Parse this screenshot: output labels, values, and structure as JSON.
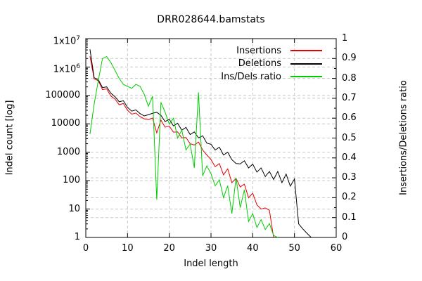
{
  "title": "DRR028644.bamstats",
  "chart_data": {
    "type": "line",
    "title": "DRR028644.bamstats",
    "xlabel": "Indel length",
    "ylabel_left": "Indel count [log]",
    "ylabel_right": "Insertions/Deletions ratio",
    "x_range": [
      0,
      60
    ],
    "y_left": {
      "scale": "log",
      "range": [
        1,
        10000000
      ]
    },
    "y_right": {
      "scale": "linear",
      "range": [
        0,
        1
      ]
    },
    "grid": {
      "on": true,
      "color": "#c8c8c8",
      "dashed": true
    },
    "legend_position": "top-right-inside",
    "x_ticks": [
      0,
      10,
      20,
      30,
      40,
      50,
      60
    ],
    "y_left_tick_labels": [
      {
        "text": "1x10",
        "sup": "7",
        "value": 10000000
      },
      {
        "text": "1x10",
        "sup": "6",
        "value": 1000000
      },
      {
        "text": "100000",
        "value": 100000
      },
      {
        "text": "10000",
        "value": 10000
      },
      {
        "text": "1000",
        "value": 1000
      },
      {
        "text": "100",
        "value": 100
      },
      {
        "text": "10",
        "value": 10
      },
      {
        "text": "1",
        "value": 1
      }
    ],
    "y_right_tick_labels": [
      {
        "text": "1",
        "value": 1
      },
      {
        "text": "0.9",
        "value": 0.9
      },
      {
        "text": "0.8",
        "value": 0.8
      },
      {
        "text": "0.7",
        "value": 0.7
      },
      {
        "text": "0.6",
        "value": 0.6
      },
      {
        "text": "0.5",
        "value": 0.5
      },
      {
        "text": "0.4",
        "value": 0.4
      },
      {
        "text": "0.3",
        "value": 0.3
      },
      {
        "text": "0.2",
        "value": 0.2
      },
      {
        "text": "0.1",
        "value": 0.1
      },
      {
        "text": "0",
        "value": 0
      }
    ],
    "series": [
      {
        "name": "Insertions",
        "color": "#e60000",
        "axis": "left",
        "x_start": 1,
        "y": [
          2400000,
          380000,
          330000,
          160000,
          170000,
          95000,
          75000,
          47000,
          52000,
          30000,
          22000,
          24000,
          18000,
          15000,
          14000,
          16000,
          4800,
          13500,
          7600,
          8300,
          5100,
          5200,
          3200,
          3300,
          2000,
          1800,
          2300,
          1200,
          800,
          550,
          310,
          400,
          160,
          260,
          85,
          120,
          60,
          75,
          25,
          36,
          14,
          10,
          11,
          9,
          1
        ]
      },
      {
        "name": "Deletions",
        "color": "#000000",
        "axis": "left",
        "x_start": 1,
        "y": [
          4200000,
          420000,
          360000,
          190000,
          200000,
          120000,
          90000,
          60000,
          65000,
          38000,
          28000,
          31000,
          23000,
          19000,
          21000,
          23500,
          25500,
          20000,
          12000,
          14500,
          8500,
          10500,
          6000,
          7500,
          4200,
          5200,
          3200,
          3800,
          2100,
          1900,
          1200,
          1500,
          800,
          1000,
          550,
          400,
          390,
          500,
          280,
          380,
          200,
          280,
          140,
          210,
          110,
          210,
          85,
          170,
          64,
          115,
          3,
          2,
          1.4,
          1
        ]
      },
      {
        "name": "Ins/Dels ratio",
        "color": "#00cc00",
        "axis": "right",
        "x_start": 1,
        "y": [
          0.52,
          0.67,
          0.79,
          0.9,
          0.91,
          0.88,
          0.84,
          0.8,
          0.77,
          0.76,
          0.75,
          0.77,
          0.76,
          0.72,
          0.66,
          0.71,
          0.19,
          0.68,
          0.63,
          0.57,
          0.6,
          0.5,
          0.54,
          0.44,
          0.47,
          0.35,
          0.73,
          0.31,
          0.36,
          0.32,
          0.26,
          0.29,
          0.2,
          0.26,
          0.12,
          0.3,
          0.15,
          0.24,
          0.08,
          0.12,
          0.05,
          0.09,
          0.04,
          0.07,
          0.01,
          0
        ]
      }
    ]
  }
}
